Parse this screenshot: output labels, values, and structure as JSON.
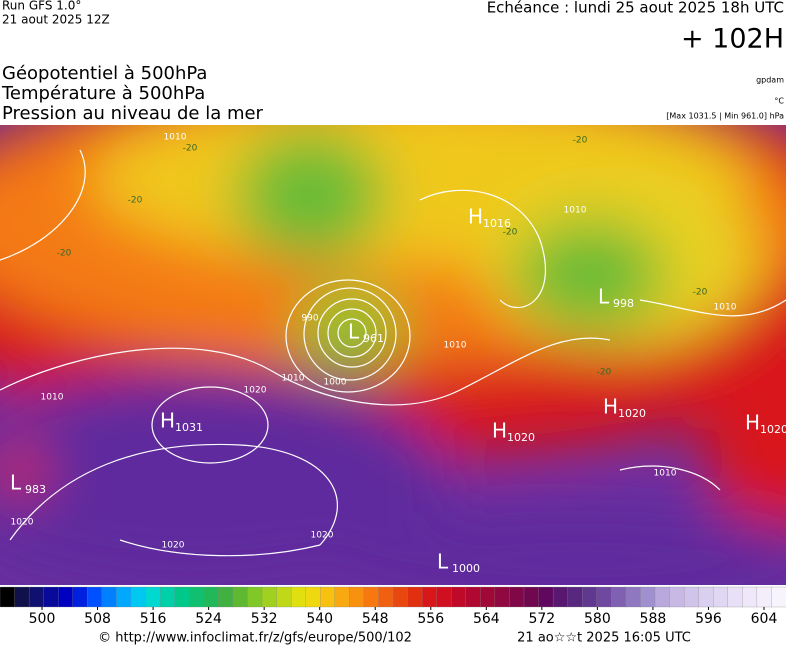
{
  "header": {
    "run": "Run GFS 1.0°",
    "run_date": "21 aout 2025 12Z",
    "echeance": "Echéance : lundi 25 aout 2025 18h UTC",
    "lead": "+ 102H",
    "titles": [
      "Géopotentiel à 500hPa",
      "Température à 500hPa",
      "Pression au niveau de la mer"
    ],
    "units": [
      "gpdam",
      "°C",
      "[Max 1031.5 | Min 961.0] hPa"
    ]
  },
  "map": {
    "centers": [
      {
        "type": "H",
        "value": 1016
      },
      {
        "type": "L",
        "value": 961
      },
      {
        "type": "L",
        "value": 998
      },
      {
        "type": "H",
        "value": 1020
      },
      {
        "type": "H",
        "value": 1020
      },
      {
        "type": "H",
        "value": 1020
      },
      {
        "type": "H",
        "value": 1031
      },
      {
        "type": "L",
        "value": 983
      },
      {
        "type": "L",
        "value": 1000
      }
    ],
    "contour_labels": [
      1010,
      1010,
      1020,
      1010,
      1000,
      990,
      1010,
      1010,
      1010,
      1020,
      1020,
      1020,
      1010
    ],
    "temperature_labels": [
      -20,
      -20,
      -20,
      -20,
      -20,
      -20,
      -20
    ]
  },
  "colorbar": {
    "ticks": [
      500,
      508,
      516,
      524,
      532,
      540,
      548,
      556,
      564,
      572,
      580,
      588,
      596,
      604
    ]
  },
  "footer": {
    "source": "© http://www.infoclimat.fr/z/gfs/europe/500/102",
    "timestamp": "21 ao☆☆t 2025 16:05 UTC"
  }
}
